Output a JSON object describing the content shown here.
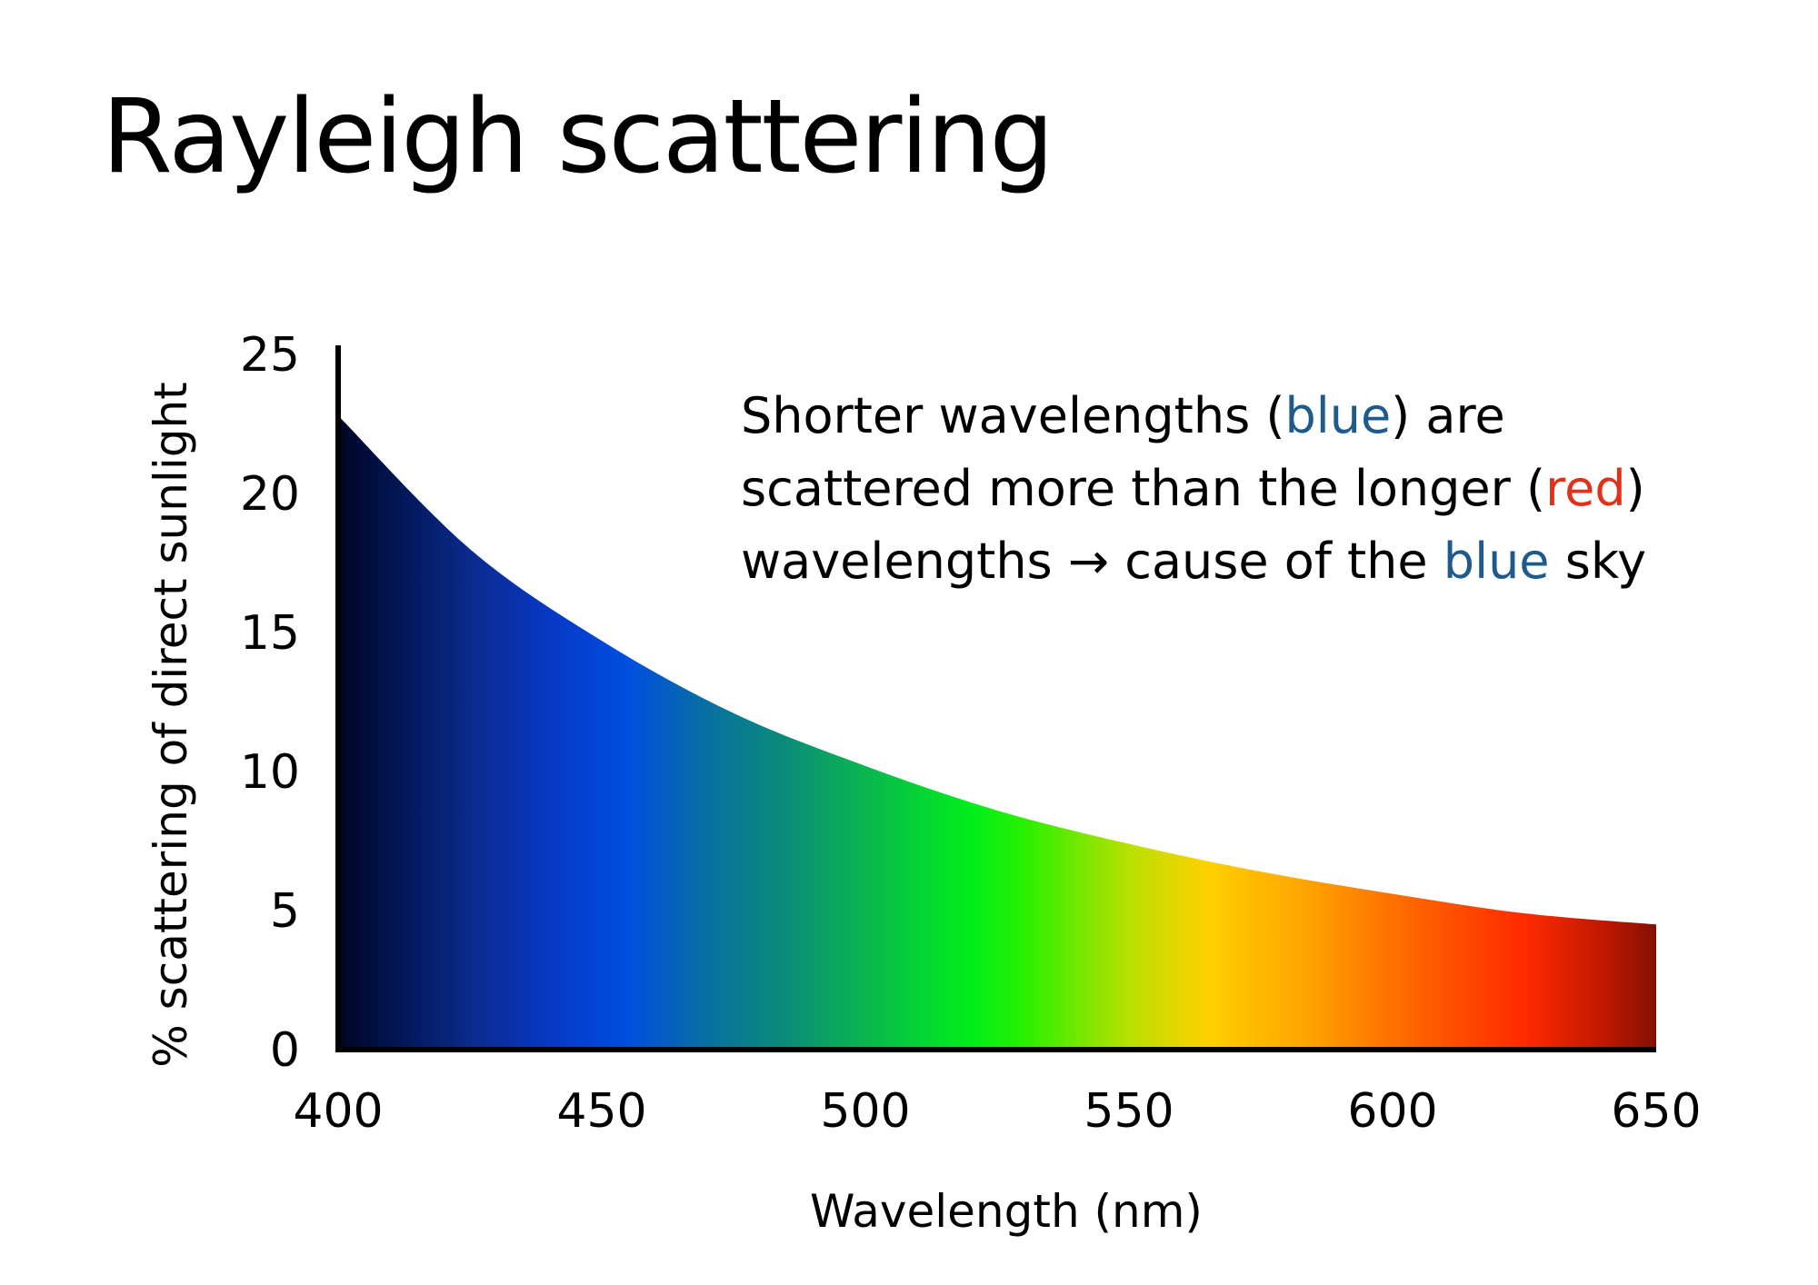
{
  "title": "Rayleigh scattering",
  "annotation": {
    "line1": {
      "pre": "Shorter wavelengths (",
      "blue": "blue",
      "post": ") are"
    },
    "line2": {
      "pre": "scattered more than the longer (",
      "red": "red",
      "post": ")"
    },
    "line3": {
      "pre": "wavelengths → cause of the ",
      "blue": "blue",
      "post": " sky"
    },
    "colors": {
      "blue": "#1f5a8c",
      "red": "#e0311a"
    }
  },
  "chart_data": {
    "type": "area",
    "title": "Rayleigh scattering",
    "xlabel": "Wavelength (nm)",
    "ylabel": "% scattering of direct sunlight",
    "xlim": [
      400,
      650
    ],
    "ylim": [
      0,
      25
    ],
    "x_ticks": [
      400,
      450,
      500,
      550,
      600,
      650
    ],
    "y_ticks": [
      0,
      5,
      10,
      15,
      20,
      25
    ],
    "grid": false,
    "legend": "none",
    "fill": "visible spectrum gradient",
    "series": [
      {
        "x": [
          400,
          425,
          450,
          475,
          500,
          525,
          550,
          575,
          600,
          625,
          650
        ],
        "y": [
          22.8,
          18.0,
          14.7,
          12.1,
          10.2,
          8.6,
          7.4,
          6.4,
          5.6,
          4.9,
          4.5
        ]
      }
    ],
    "spectrum_stops": [
      {
        "nm": 400,
        "color": "#000522"
      },
      {
        "nm": 405,
        "color": "#000c3a"
      },
      {
        "nm": 425,
        "color": "#0a2a8c"
      },
      {
        "nm": 440,
        "color": "#0838c4"
      },
      {
        "nm": 455,
        "color": "#004ee0"
      },
      {
        "nm": 470,
        "color": "#0870a0"
      },
      {
        "nm": 485,
        "color": "#0a8c78"
      },
      {
        "nm": 500,
        "color": "#0ab650"
      },
      {
        "nm": 520,
        "color": "#00ee1c"
      },
      {
        "nm": 530,
        "color": "#28f000"
      },
      {
        "nm": 550,
        "color": "#b8e000"
      },
      {
        "nm": 565,
        "color": "#ffd000"
      },
      {
        "nm": 585,
        "color": "#ffa000"
      },
      {
        "nm": 605,
        "color": "#ff6000"
      },
      {
        "nm": 625,
        "color": "#ff2a00"
      },
      {
        "nm": 640,
        "color": "#c01800"
      },
      {
        "nm": 650,
        "color": "#841000"
      }
    ]
  }
}
